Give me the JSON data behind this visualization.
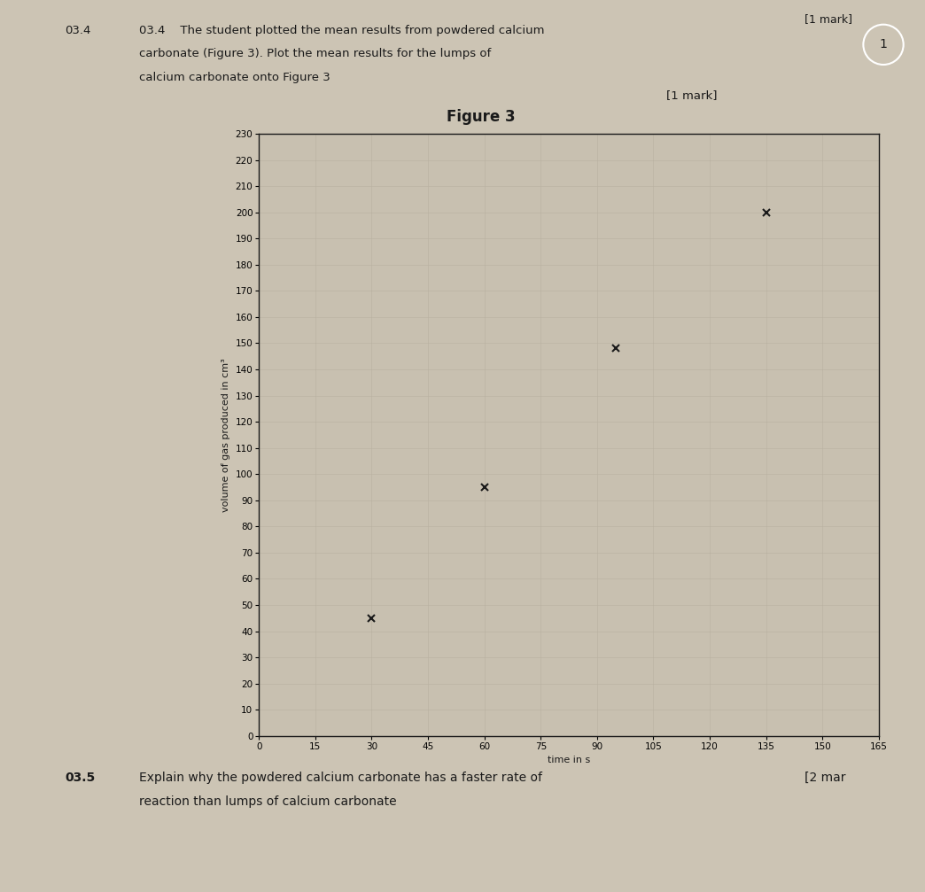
{
  "title": "Figure 3",
  "xlabel": "time in s",
  "ylabel": "volume of gas produced in cm³",
  "xlim": [
    0,
    165
  ],
  "ylim": [
    0,
    230
  ],
  "xticks": [
    0,
    15,
    30,
    45,
    60,
    75,
    90,
    105,
    120,
    135,
    150,
    165
  ],
  "yticks": [
    0,
    10,
    20,
    30,
    40,
    50,
    60,
    70,
    80,
    90,
    100,
    110,
    120,
    130,
    140,
    150,
    160,
    170,
    180,
    190,
    200,
    210,
    220,
    230
  ],
  "data_points_x": [
    30,
    60,
    95,
    135
  ],
  "data_points_y": [
    45,
    95,
    148,
    200
  ],
  "marker": "x",
  "marker_color": "#1a1a1a",
  "marker_size": 6,
  "marker_linewidth": 1.5,
  "background_color": "#ccc4b4",
  "plot_bg_color": "#c8c0b0",
  "grid_color": "#b8b0a0",
  "title_fontsize": 12,
  "axis_label_fontsize": 8,
  "tick_fontsize": 7.5,
  "text_line1": "03.4    The student plotted the mean results from powdered calcium",
  "text_line2": "carbonate (Figure 3). Plot the mean results for the lumps of",
  "text_line3": "calcium carbonate onto Figure 3",
  "text_mark_top": "[1 mark]",
  "text_mark_right": "[1 mark]",
  "text_035_label": "03.5",
  "text_035_q1": "Explain why the powdered calcium carbonate has a faster rate of",
  "text_035_q2": "reaction than lumps of calcium carbonate",
  "text_035_mark": "[2 mar"
}
